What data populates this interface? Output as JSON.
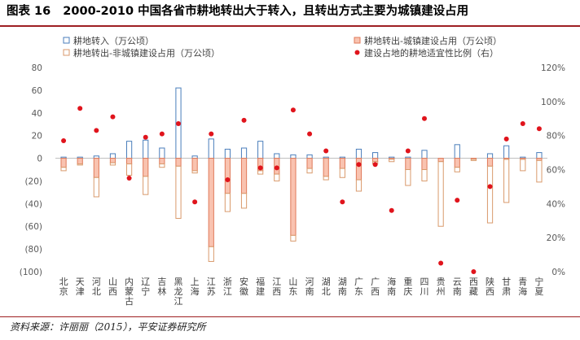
{
  "figure": {
    "prefix": "图表 16",
    "title": "2000-2010 中国各省市耕地转出大于转入，且转出方式主要为城镇建设占用",
    "source": "资料来源：许丽丽（2015），平安证券研究所"
  },
  "colors": {
    "title_rule": "#9e1f22",
    "transfer_in": "#4a7ebb",
    "urban": "#e07a5a",
    "urban_fill": "#f9c3b0",
    "nonurban": "#d99a6c",
    "ratio": "#e0141c"
  },
  "chart_data": {
    "type": "bar",
    "categories": [
      "北京",
      "天津",
      "河北",
      "山西",
      "内蒙古",
      "辽宁",
      "吉林",
      "黑龙江",
      "上海",
      "江苏",
      "浙江",
      "安徽",
      "福建",
      "江西",
      "山东",
      "河南",
      "湖北",
      "湖南",
      "广东",
      "广西",
      "海南",
      "重庆",
      "四川",
      "贵州",
      "云南",
      "西藏",
      "陕西",
      "甘肃",
      "青海",
      "宁夏"
    ],
    "series": [
      {
        "name": "耕地转入（万公顷）",
        "axis": "left",
        "style": "outline",
        "values": [
          1,
          1,
          2,
          4,
          15,
          16,
          9,
          62,
          2,
          17,
          8,
          9,
          15,
          4,
          3,
          3,
          1,
          1,
          8,
          5,
          1,
          1,
          7,
          0,
          12,
          0,
          4,
          11,
          1,
          5
        ]
      },
      {
        "name": "耕地转出-城镇建设占用（万公顷）",
        "axis": "left",
        "style": "filled",
        "values": [
          -8,
          -5,
          -17,
          -4,
          -5,
          -16,
          -5,
          -7,
          -11,
          -78,
          -31,
          -31,
          -11,
          -14,
          -68,
          -9,
          -16,
          -9,
          -19,
          -3,
          -1,
          -10,
          -10,
          -3,
          -8,
          -1,
          -7,
          -1,
          -1,
          -2
        ]
      },
      {
        "name": "耕地转出-非城镇建设占用（万公顷）",
        "axis": "left",
        "style": "outline",
        "values": [
          -3,
          -1,
          -17,
          -2,
          -10,
          -16,
          -3,
          -46,
          -2,
          -13,
          -16,
          -13,
          -3,
          -6,
          -5,
          -4,
          -3,
          -8,
          -10,
          -2,
          -2,
          -14,
          -10,
          -57,
          -4,
          -1,
          -50,
          -38,
          -10,
          -19
        ]
      },
      {
        "name": "建设占地的耕地适宜性比例（右）",
        "axis": "right",
        "style": "dot",
        "values": [
          77,
          96,
          83,
          91,
          55,
          79,
          81,
          87,
          41,
          81,
          54,
          89,
          61,
          61,
          95,
          81,
          71,
          41,
          63,
          63,
          36,
          71,
          90,
          5,
          42,
          0,
          50,
          78,
          87,
          84
        ]
      }
    ],
    "left_axis": {
      "min": -100,
      "max": 80,
      "step": 20,
      "tick_labels": [
        "(100)",
        "(80)",
        "(60)",
        "(40)",
        "(20)",
        "0",
        "20",
        "40",
        "60",
        "80"
      ]
    },
    "right_axis": {
      "min": 0,
      "max": 120,
      "step": 20,
      "tick_labels": [
        "0%",
        "20%",
        "40%",
        "60%",
        "80%",
        "100%",
        "120%"
      ]
    },
    "grid": false,
    "legend": {
      "position": "top",
      "items": [
        {
          "label": "耕地转入（万公顷）",
          "marker": "outline-blue"
        },
        {
          "label": "耕地转出-城镇建设占用（万公顷）",
          "marker": "filled-red"
        },
        {
          "label": "耕地转出-非城镇建设占用（万公顷）",
          "marker": "outline-orange"
        },
        {
          "label": "建设占地的耕地适宜性比例（右）",
          "marker": "red-dot"
        }
      ]
    }
  }
}
